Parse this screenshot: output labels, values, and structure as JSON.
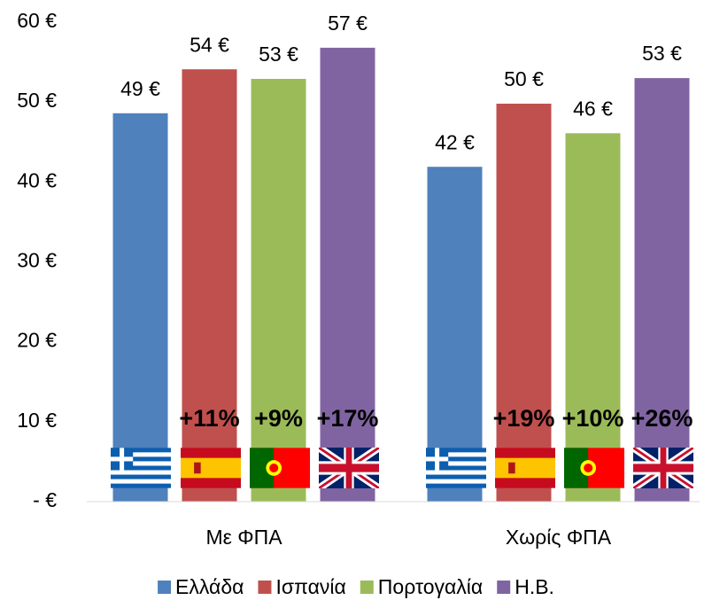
{
  "chart_data": {
    "type": "bar",
    "categories": [
      "Με ΦΠΑ",
      "Χωρίς ΦΠΑ"
    ],
    "series": [
      {
        "name": "Ελλάδα",
        "color": "#4f81bd",
        "values": [
          48.6,
          41.9
        ],
        "value_labels": [
          "49 €",
          "42 €"
        ]
      },
      {
        "name": "Ισπανία",
        "color": "#c0504d",
        "values": [
          54.1,
          49.8
        ],
        "value_labels": [
          "54 €",
          "50 €"
        ]
      },
      {
        "name": "Πορτογαλία",
        "color": "#9bbb59",
        "values": [
          52.9,
          46.1
        ],
        "value_labels": [
          "53 €",
          "46 €"
        ]
      },
      {
        "name": "Η.Β.",
        "color": "#8064a2",
        "values": [
          56.8,
          53.0
        ],
        "value_labels": [
          "57 €",
          "53 €"
        ]
      }
    ],
    "annotations": [
      [
        "+11%",
        "+9%",
        "+17%"
      ],
      [
        "+19%",
        "+10%",
        "+26%"
      ]
    ],
    "ylim": [
      0,
      60
    ],
    "yticks": [
      {
        "value": 0,
        "label": "-   €"
      },
      {
        "value": 10,
        "label": "10 €"
      },
      {
        "value": 20,
        "label": "20 €"
      },
      {
        "value": 30,
        "label": "30 €"
      },
      {
        "value": 40,
        "label": "40 €"
      },
      {
        "value": 50,
        "label": "50 €"
      },
      {
        "value": 60,
        "label": "60 €"
      }
    ],
    "grid": false,
    "legend": "bottom"
  }
}
